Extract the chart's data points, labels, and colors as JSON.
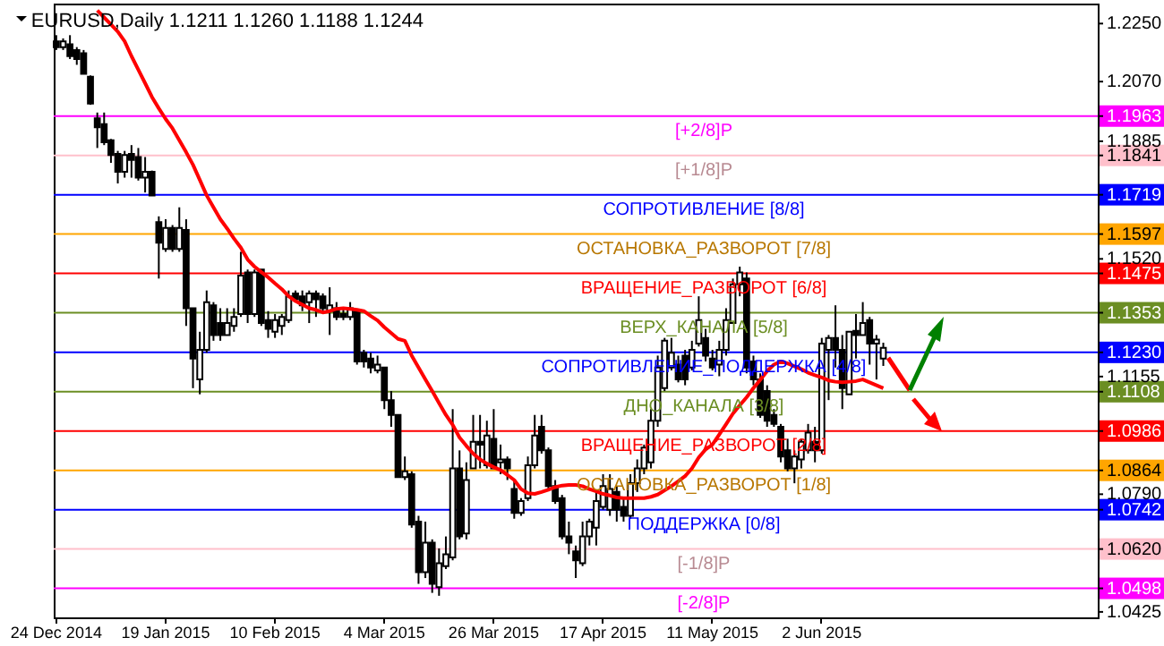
{
  "chart_data": {
    "type": "candlestick",
    "title": "EURUSD,Daily 1.1211 1.1260 1.1188 1.1244",
    "categories": [
      "24 Dec 2014",
      null,
      null,
      null,
      null,
      null,
      null,
      null,
      null,
      null,
      null,
      null,
      null,
      null,
      null,
      null,
      "19 Jan 2015",
      null,
      null,
      null,
      null,
      null,
      null,
      null,
      null,
      null,
      null,
      null,
      null,
      null,
      null,
      null,
      "10 Feb 2015",
      null,
      null,
      null,
      null,
      null,
      null,
      null,
      null,
      null,
      null,
      null,
      null,
      null,
      null,
      null,
      "4 Mar 2015",
      null,
      null,
      null,
      null,
      null,
      null,
      null,
      null,
      null,
      null,
      null,
      null,
      null,
      null,
      null,
      "26 Mar 2015",
      null,
      null,
      null,
      null,
      null,
      null,
      null,
      null,
      null,
      null,
      null,
      null,
      null,
      null,
      null,
      "17 Apr 2015",
      null,
      null,
      null,
      null,
      null,
      null,
      null,
      null,
      null,
      null,
      null,
      null,
      null,
      null,
      null,
      "11 May 2015",
      null,
      null,
      null,
      null,
      null,
      null,
      null,
      null,
      null,
      null,
      null,
      null,
      null,
      null,
      null,
      "2 Jun 2015",
      null,
      null,
      null,
      null,
      null,
      null,
      null,
      null,
      null,
      null,
      null,
      null,
      null,
      null,
      null,
      null,
      null,
      null,
      null,
      null,
      null,
      null,
      null,
      null,
      null,
      null,
      null,
      null,
      null,
      null,
      null,
      null,
      null,
      null,
      null,
      null,
      null,
      null,
      null,
      null
    ],
    "ohlc": [
      [
        1.2195,
        1.2214,
        1.2168,
        1.2177
      ],
      [
        1.2177,
        1.2204,
        1.2168,
        1.2195
      ],
      [
        1.2186,
        1.2214,
        1.214,
        1.2149
      ],
      [
        1.2168,
        1.2177,
        1.2122,
        1.214
      ],
      [
        1.2158,
        1.2168,
        1.2094,
        1.2094
      ],
      [
        1.2085,
        1.2089,
        1.1998,
        1.2002
      ],
      [
        1.1956,
        1.1974,
        1.1864,
        1.1928
      ],
      [
        1.1938,
        1.1974,
        1.1873,
        1.1882
      ],
      [
        1.1888,
        1.1892,
        1.1818,
        1.1842
      ],
      [
        1.1846,
        1.1855,
        1.1754,
        1.179
      ],
      [
        1.179,
        1.1855,
        1.1772,
        1.1842
      ],
      [
        1.1846,
        1.1873,
        1.1772,
        1.1827
      ],
      [
        1.1836,
        1.1864,
        1.1763,
        1.1772
      ],
      [
        1.1772,
        1.1836,
        1.1726,
        1.179
      ],
      [
        1.179,
        1.1794,
        1.1717,
        1.1717
      ],
      [
        1.1634,
        1.1652,
        1.1459,
        1.157
      ],
      [
        1.1551,
        1.1643,
        1.1542,
        1.1616
      ],
      [
        1.1616,
        1.1625,
        1.1542,
        1.1551
      ],
      [
        1.1551,
        1.168,
        1.1542,
        1.1616
      ],
      [
        1.161,
        1.1643,
        1.1312,
        1.1367
      ],
      [
        1.1367,
        1.1367,
        1.1119,
        1.1211
      ],
      [
        1.1146,
        1.1294,
        1.11,
        1.1238
      ],
      [
        1.1238,
        1.1422,
        1.1229,
        1.1386
      ],
      [
        1.1376,
        1.1386,
        1.1266,
        1.1284
      ],
      [
        1.1321,
        1.1367,
        1.1266,
        1.1284
      ],
      [
        1.1284,
        1.1367,
        1.1284,
        1.1321
      ],
      [
        1.1312,
        1.1367,
        1.1294,
        1.134
      ],
      [
        1.1349,
        1.1542,
        1.134,
        1.1468
      ],
      [
        1.1478,
        1.1487,
        1.1321,
        1.1349
      ],
      [
        1.1349,
        1.1487,
        1.134,
        1.1478
      ],
      [
        1.1487,
        1.1487,
        1.1312,
        1.1321
      ],
      [
        1.133,
        1.1358,
        1.1275,
        1.1303
      ],
      [
        1.1294,
        1.1349,
        1.1275,
        1.133
      ],
      [
        1.1312,
        1.1349,
        1.1284,
        1.134
      ],
      [
        1.133,
        1.1422,
        1.1321,
        1.1404
      ],
      [
        1.1413,
        1.1422,
        1.1386,
        1.1395
      ],
      [
        1.1404,
        1.1422,
        1.1358,
        1.1376
      ],
      [
        1.1386,
        1.1422,
        1.1321,
        1.1413
      ],
      [
        1.1413,
        1.1422,
        1.134,
        1.1395
      ],
      [
        1.1404,
        1.1413,
        1.1358,
        1.1367
      ],
      [
        1.1358,
        1.1432,
        1.1284,
        1.1376
      ],
      [
        1.1367,
        1.1386,
        1.133,
        1.134
      ],
      [
        1.1349,
        1.1367,
        1.133,
        1.134
      ],
      [
        1.134,
        1.1386,
        1.133,
        1.1367
      ],
      [
        1.1358,
        1.1358,
        1.1192,
        1.1202
      ],
      [
        1.1229,
        1.1238,
        1.1183,
        1.1202
      ],
      [
        1.1211,
        1.1229,
        1.1165,
        1.1183
      ],
      [
        1.1174,
        1.122,
        1.1165,
        1.1192
      ],
      [
        1.1183,
        1.1183,
        1.1054,
        1.1082
      ],
      [
        1.1082,
        1.111,
        1.0999,
        1.1036
      ],
      [
        1.1036,
        1.1036,
        1.0843,
        1.0843
      ],
      [
        1.0843,
        1.0907,
        1.0834,
        1.0861
      ],
      [
        1.0852,
        1.0861,
        1.0686,
        1.0696
      ],
      [
        1.0705,
        1.0723,
        1.0512,
        1.0548
      ],
      [
        1.0548,
        1.0705,
        1.053,
        1.064
      ],
      [
        1.064,
        1.065,
        1.0484,
        1.0512
      ],
      [
        1.0502,
        1.0622,
        1.0475,
        1.0576
      ],
      [
        1.0567,
        1.0659,
        1.0558,
        1.0604
      ],
      [
        1.0594,
        1.1054,
        1.0585,
        1.087
      ],
      [
        1.087,
        1.0926,
        1.065,
        1.0659
      ],
      [
        1.0668,
        1.0889,
        1.065,
        1.0834
      ],
      [
        1.087,
        1.1036,
        1.087,
        1.0953
      ],
      [
        1.0953,
        1.1036,
        1.087,
        1.0944
      ],
      [
        1.088,
        1.1018,
        1.087,
        1.0972
      ],
      [
        1.0962,
        1.1054,
        1.087,
        1.087
      ],
      [
        1.0889,
        1.0944,
        1.0852,
        1.0898
      ],
      [
        1.0898,
        1.0907,
        1.0834,
        1.087
      ],
      [
        1.0806,
        1.0834,
        1.0714,
        1.0732
      ],
      [
        1.0732,
        1.0778,
        1.0723,
        1.0769
      ],
      [
        1.0778,
        1.0907,
        1.0769,
        1.088
      ],
      [
        1.088,
        1.1036,
        1.087,
        1.0972
      ],
      [
        1.0999,
        1.1036,
        1.0916,
        1.0926
      ],
      [
        1.0926,
        1.0935,
        1.0806,
        1.0815
      ],
      [
        1.0815,
        1.0834,
        1.076,
        1.0769
      ],
      [
        1.0778,
        1.0788,
        1.065,
        1.0659
      ],
      [
        1.0659,
        1.0705,
        1.0604,
        1.064
      ],
      [
        1.0613,
        1.0631,
        1.053,
        1.0585
      ],
      [
        1.0576,
        1.0705,
        1.0567,
        1.0659
      ],
      [
        1.0659,
        1.0714,
        1.0631,
        1.0705
      ],
      [
        1.0686,
        1.0797,
        1.0631,
        1.0769
      ],
      [
        1.0751,
        1.0852,
        1.0742,
        1.0815
      ],
      [
        1.0742,
        1.0852,
        1.0723,
        1.0806
      ],
      [
        1.0797,
        1.0815,
        1.0705,
        1.0742
      ],
      [
        1.0751,
        1.0778,
        1.0705,
        1.0723
      ],
      [
        1.0723,
        1.0852,
        1.0714,
        1.0824
      ],
      [
        1.0824,
        1.0898,
        1.0797,
        1.087
      ],
      [
        1.087,
        1.0944,
        1.0852,
        1.0935
      ],
      [
        1.0889,
        1.1054,
        1.087,
        1.1018
      ],
      [
        1.1018,
        1.122,
        1.0999,
        1.1183
      ],
      [
        1.1119,
        1.1275,
        1.111,
        1.1266
      ],
      [
        1.1183,
        1.1275,
        1.1174,
        1.1229
      ],
      [
        1.1192,
        1.122,
        1.1137,
        1.1146
      ],
      [
        1.122,
        1.1238,
        1.1128,
        1.1146
      ],
      [
        1.1183,
        1.1266,
        1.1174,
        1.1238
      ],
      [
        1.1257,
        1.1404,
        1.1248,
        1.133
      ],
      [
        1.1275,
        1.1303,
        1.1202,
        1.122
      ],
      [
        1.1211,
        1.1238,
        1.1174,
        1.1183
      ],
      [
        1.1192,
        1.1266,
        1.1156,
        1.1238
      ],
      [
        1.1238,
        1.1367,
        1.122,
        1.133
      ],
      [
        1.1321,
        1.1459,
        1.1321,
        1.1441
      ],
      [
        1.1441,
        1.1496,
        1.1404,
        1.1478
      ],
      [
        1.1459,
        1.1478,
        1.1165,
        1.1183
      ],
      [
        1.1202,
        1.122,
        1.1128,
        1.1146
      ],
      [
        1.1146,
        1.1165,
        1.1027,
        1.1036
      ],
      [
        1.111,
        1.1128,
        1.0999,
        1.1018
      ],
      [
        1.1036,
        1.1054,
        1.0999,
        1.1008
      ],
      [
        1.0999,
        1.1008,
        1.0889,
        1.0907
      ],
      [
        1.0926,
        1.0962,
        1.0861,
        1.087
      ],
      [
        1.087,
        1.0926,
        1.0824,
        1.0907
      ],
      [
        1.0898,
        1.0962,
        1.087,
        1.0953
      ],
      [
        1.0926,
        1.1008,
        1.0916,
        1.0981
      ],
      [
        1.0953,
        1.0999,
        1.0889,
        1.0926
      ],
      [
        1.0926,
        1.1275,
        1.0916,
        1.1257
      ],
      [
        1.1238,
        1.1284,
        1.1082,
        1.1275
      ],
      [
        1.1275,
        1.1376,
        1.1183,
        1.1238
      ],
      [
        1.1238,
        1.1284,
        1.1054,
        1.1119
      ],
      [
        1.11,
        1.1294,
        1.11,
        1.1294
      ],
      [
        1.1297,
        1.1349,
        1.1211,
        1.1284
      ],
      [
        1.1284,
        1.1386,
        1.1284,
        1.1321
      ],
      [
        1.133,
        1.134,
        1.1192,
        1.1257
      ],
      [
        1.1257,
        1.1284,
        1.1146,
        1.127
      ],
      [
        1.1211,
        1.126,
        1.1188,
        1.1244
      ],
      null,
      null,
      null,
      null,
      null,
      null,
      null,
      null,
      null,
      null,
      null,
      null,
      null,
      null,
      null,
      null,
      null,
      null,
      null,
      null,
      null,
      null,
      null,
      null,
      null,
      null,
      null,
      null,
      null,
      null,
      null
    ],
    "series": [
      {
        "type": "line",
        "color": "#ff0000",
        "values": [
          null,
          null,
          null,
          null,
          null,
          null,
          1.2291,
          1.2269,
          1.2247,
          1.2225,
          1.2195,
          1.2149,
          1.2107,
          1.2065,
          1.2022,
          1.1987,
          1.1954,
          1.1925,
          1.1888,
          1.1851,
          1.1812,
          1.1765,
          1.1717,
          1.168,
          1.1643,
          1.1614,
          1.1583,
          1.1555,
          1.1518,
          1.1496,
          1.1479,
          1.1463,
          1.1444,
          1.1426,
          1.1404,
          1.1389,
          1.1378,
          1.1367,
          1.1362,
          1.1354,
          1.1358,
          1.1365,
          1.1367,
          1.1365,
          1.1362,
          1.1358,
          1.1343,
          1.1329,
          1.1308,
          1.129,
          1.1272,
          1.1266,
          1.122,
          1.1183,
          1.1146,
          1.111,
          1.1073,
          1.1036,
          1.1005,
          1.0966,
          1.094,
          1.0916,
          1.0898,
          1.0885,
          1.0874,
          1.0865,
          1.085,
          1.0834,
          1.0806,
          1.0793,
          1.0791,
          1.0797,
          1.0804,
          1.0812,
          1.0817,
          1.0819,
          1.0819,
          1.0815,
          1.0806,
          1.0799,
          1.0791,
          1.0786,
          1.078,
          1.0778,
          1.0778,
          1.0778,
          1.0778,
          1.0782,
          1.0789,
          1.0802,
          1.0815,
          1.083,
          1.0846,
          1.087,
          1.0904,
          1.0929,
          1.0944,
          1.0975,
          1.1007,
          1.104,
          1.1066,
          1.1091,
          1.1119,
          1.1145,
          1.1172,
          1.1192,
          1.1202,
          1.1196,
          1.1187,
          1.1178,
          1.1167,
          1.1159,
          1.1152,
          1.1143,
          1.1139,
          1.1137,
          1.1139,
          1.1141,
          1.1146,
          1.1137,
          1.1128,
          1.1119,
          null,
          null,
          null,
          null,
          null,
          null,
          null,
          null,
          null,
          null,
          null,
          null,
          null,
          null,
          null,
          null,
          null,
          null,
          null,
          null,
          null,
          null,
          null,
          null,
          null,
          null,
          null,
          null,
          null,
          null,
          null
        ]
      }
    ],
    "ylim": [
      1.0408,
      1.2312
    ],
    "yticks": [
      {
        "value": 1.225,
        "label": "1.2250"
      },
      {
        "value": 1.207,
        "label": "1.2070"
      },
      1.1963,
      1.1885,
      1.1841,
      1.1719,
      1.1597,
      {
        "value": 1.152,
        "label": "1.1520"
      },
      1.1475,
      1.1353,
      {
        "value": 1.123,
        "label": "1.1230"
      },
      1.1155,
      1.1108,
      1.0986,
      1.0864,
      {
        "value": 1.079,
        "label": "1.0790"
      },
      1.0742,
      {
        "value": 1.062,
        "label": "1.0620"
      },
      1.0498,
      1.0425
    ],
    "ref_lines": [
      {
        "axis": "y",
        "value": 1.1963,
        "label": "[+2/8]P",
        "color": "#ff00ff"
      },
      {
        "axis": "y",
        "value": 1.1841,
        "label": "[+1/8]P",
        "color": "#ffc0cb"
      },
      {
        "axis": "y",
        "value": 1.1719,
        "label": "СОПРОТИВЛЕНИЕ [8/8]",
        "color": "#0000ff"
      },
      {
        "axis": "y",
        "value": 1.1597,
        "label": "ОСТАНОВКА_РАЗВОРОТ [7/8]",
        "color": "#ffa500"
      },
      {
        "axis": "y",
        "value": 1.1475,
        "label": "ВРАЩЕНИЕ_РАЗВОРОТ [6/8]",
        "color": "#ff0000"
      },
      {
        "axis": "y",
        "value": 1.1353,
        "label": "ВЕРХ_КАНАЛА [5/8]",
        "color": "#6b8e23"
      },
      {
        "axis": "y",
        "value": 1.123,
        "label": "СОПРОТИВЛЕНИЕ_ПОДДЕРЖКА [4/8]",
        "color": "#0000ff"
      },
      {
        "axis": "y",
        "value": 1.1108,
        "label": "ДНО_КАНАЛА [3/8]",
        "color": "#6b8e23"
      },
      {
        "axis": "y",
        "value": 1.0986,
        "label": "ВРАЩЕНИЕ_РАЗВОРОТ [2/8]",
        "color": "#ff0000"
      },
      {
        "axis": "y",
        "value": 1.0864,
        "label": "ОСТАНОВКА_РАЗВОРОТ [1/8]",
        "color": "#ffa500"
      },
      {
        "axis": "y",
        "value": 1.0742,
        "label": "ПОДДЕРЖКА [0/8]",
        "color": "#0000ff"
      },
      {
        "axis": "y",
        "value": 1.062,
        "label": "[-1/8]P",
        "color": "#ffc0cb"
      },
      {
        "axis": "y",
        "value": 1.0498,
        "label": "[-2/8]P",
        "color": "#ff00ff"
      }
    ]
  }
}
